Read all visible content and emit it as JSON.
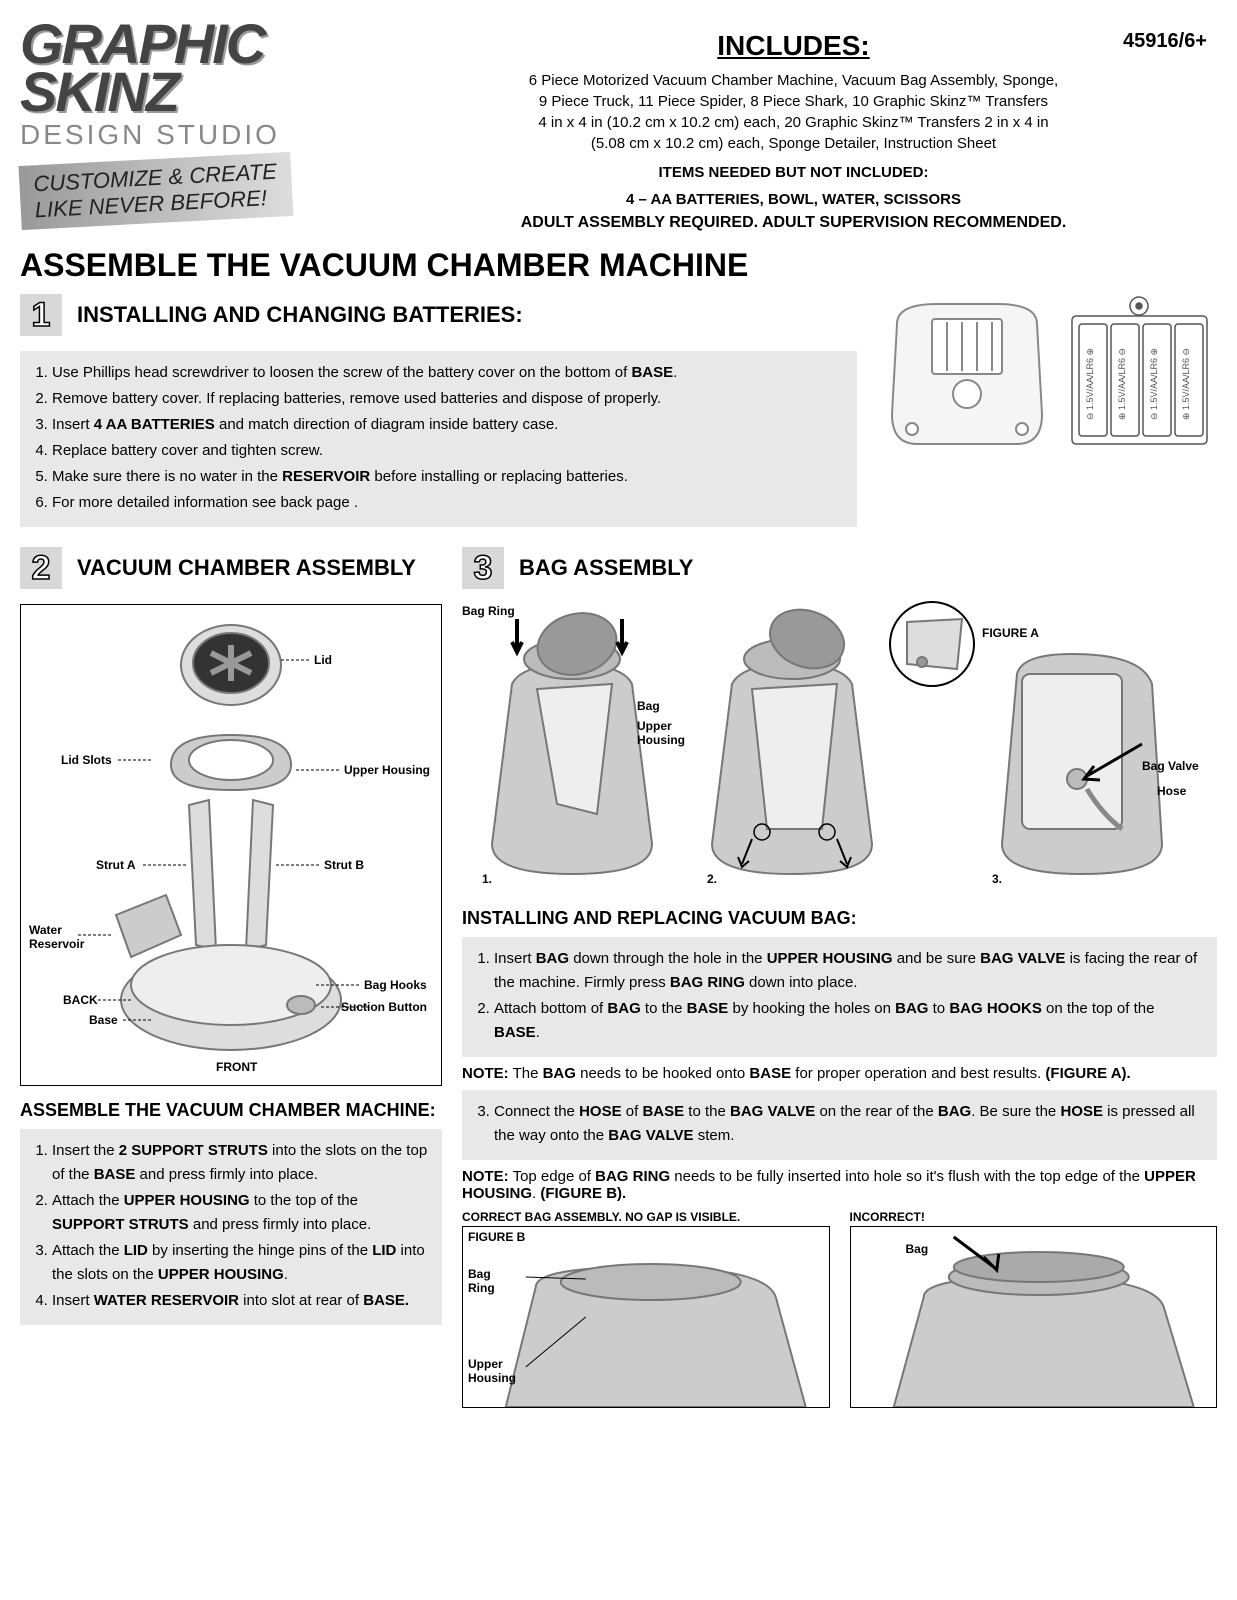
{
  "product_code": "45916/6+",
  "logo": {
    "line1": "GRAPHIC",
    "line2": "SKINZ",
    "sub": "DESIGN STUDIO",
    "tagline1": "CUSTOMIZE & CREATE",
    "tagline2": "LIKE NEVER BEFORE!"
  },
  "includes": {
    "title": "INCLUDES:",
    "text": "6 Piece Motorized Vacuum Chamber Machine, Vacuum Bag Assembly, Sponge,\n9 Piece Truck, 11 Piece Spider, 8 Piece Shark, 10 Graphic Skinz™ Transfers\n4 in x 4 in (10.2 cm x 10.2 cm) each, 20 Graphic Skinz™ Transfers 2 in x 4 in\n(5.08 cm x 10.2 cm) each, Sponge Detailer, Instruction Sheet",
    "needed_h": "ITEMS NEEDED BUT NOT INCLUDED:",
    "needed": "4 – AA BATTERIES, BOWL, WATER, SCISSORS",
    "adult": "ADULT ASSEMBLY REQUIRED.   ADULT SUPERVISION RECOMMENDED."
  },
  "main_title": "ASSEMBLE THE VACUUM CHAMBER MACHINE",
  "step1": {
    "num": "1",
    "title": "INSTALLING AND CHANGING BATTERIES:",
    "items": [
      "Use Phillips head screwdriver to loosen the screw of the battery cover on the bottom of <b>BASE</b>.",
      "Remove battery cover.  If replacing batteries, remove used batteries and dispose of properly.",
      "Insert <b>4 AA BATTERIES</b> and match direction of diagram inside battery case.",
      "Replace battery cover and tighten screw.",
      "Make sure there is no water in the <b>RESERVOIR</b> before installing or replacing batteries.",
      "For more detailed information see back page ."
    ]
  },
  "step2": {
    "num": "2",
    "title": "VACUUM CHAMBER ASSEMBLY",
    "labels": {
      "lid": "Lid",
      "lidslots": "Lid Slots",
      "upper": "Upper Housing",
      "struta": "Strut A",
      "strutb": "Strut B",
      "water": "Water\nReservoir",
      "back": "BACK",
      "base": "Base",
      "baghooks": "Bag Hooks",
      "suction": "Suction Button",
      "front": "FRONT"
    }
  },
  "assemble_sub": "ASSEMBLE THE VACUUM CHAMBER MACHINE:",
  "assemble_steps": [
    "Insert the <b>2 SUPPORT STRUTS</b> into the slots on the top of the <b>BASE</b> and press firmly into place.",
    "Attach the <b>UPPER HOUSING</b> to the top of the <b>SUPPORT STRUTS</b> and press firmly into place.",
    "Attach the <b>LID</b> by inserting the hinge pins of the <b>LID</b> into the slots on the <b>UPPER HOUSING</b>.",
    "Insert <b>WATER RESERVOIR</b> into slot at rear of <b>BASE.</b>"
  ],
  "step3": {
    "num": "3",
    "title": "BAG ASSEMBLY",
    "labels": {
      "bagring": "Bag Ring",
      "bag": "Bag",
      "upper": "Upper\nHousing",
      "figa": "FIGURE A",
      "bagvalve": "Bag Valve",
      "hose": "Hose"
    },
    "nums": {
      "n1": "1.",
      "n2": "2.",
      "n3": "3."
    }
  },
  "install_sub": "INSTALLING AND REPLACING VACUUM BAG:",
  "install_steps": [
    "Insert <b>BAG</b> down through the hole in the <b>UPPER HOUSING</b> and be sure <b>BAG VALVE</b> is facing the rear of the machine.  Firmly press <b>BAG RING</b> down into place.",
    "Attach bottom of <b>BAG</b> to the <b>BASE</b> by hooking the holes on <b>BAG</b> to <b>BAG HOOKS</b> on the top of the <b>BASE</b>."
  ],
  "note1": "<b>NOTE:</b>  The <b>BAG</b> needs to be hooked onto <b>BASE</b> for proper operation and best results.  <b>(FIGURE A).</b>",
  "install_step3": "Connect the <b>HOSE</b> of <b>BASE</b> to the <b>BAG VALVE</b> on the rear of the <b>BAG</b>.  Be sure the <b>HOSE</b> is pressed all the way onto the <b>BAG VALVE</b> stem.",
  "note2": "<b>NOTE:</b>  Top edge of <b>BAG RING</b> needs to be fully inserted into hole so it's flush with the top edge of the <b>UPPER HOUSING</b>.  <b>(FIGURE B).</b>",
  "correct_cap": "CORRECT BAG ASSEMBLY.  NO GAP IS VISIBLE.",
  "incorrect_cap": "INCORRECT!",
  "figb": {
    "label": "FIGURE B",
    "bagring": "Bag\nRing",
    "upper": "Upper\nHousing",
    "bag": "Bag"
  },
  "battery_label": "1.5V/AA/LR6"
}
